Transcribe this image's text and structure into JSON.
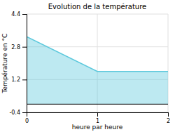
{
  "chart_data": {
    "type": "area",
    "title": "Evolution de la température",
    "xlabel": "heure par heure",
    "ylabel": "Température en °C",
    "x": [
      0,
      1,
      2
    ],
    "values": [
      3.3,
      1.6,
      1.6
    ],
    "baseline": 0,
    "color": "#5bc8dc",
    "xlim": [
      0,
      2
    ],
    "ylim": [
      -0.4,
      4.4
    ],
    "xticks": [
      0,
      1,
      2
    ],
    "yticks": [
      -0.4,
      1.2,
      2.8,
      4.4
    ],
    "grid": true
  }
}
